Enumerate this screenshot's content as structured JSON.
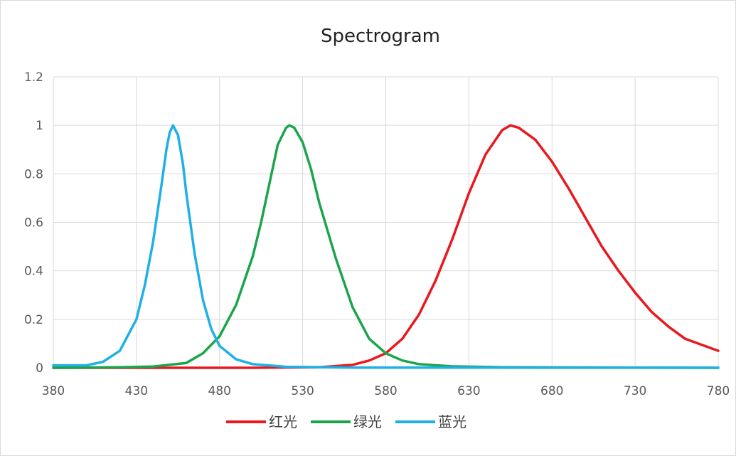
{
  "chart_data": {
    "type": "line",
    "title": "Spectrogram",
    "xlabel": "",
    "ylabel": "",
    "xlim": [
      380,
      780
    ],
    "ylim": [
      0,
      1.2
    ],
    "x_ticks": [
      380,
      430,
      480,
      530,
      580,
      630,
      680,
      730,
      780
    ],
    "y_ticks": [
      "0",
      "0.2",
      "0.4",
      "0.6",
      "0.8",
      "1",
      "1.2"
    ],
    "grid": true,
    "legend": "bottom",
    "series": [
      {
        "name": "红光",
        "color": "#e8191e",
        "x": [
          380,
          500,
          540,
          560,
          570,
          580,
          590,
          600,
          610,
          620,
          630,
          640,
          650,
          655,
          660,
          670,
          680,
          690,
          700,
          710,
          720,
          730,
          740,
          750,
          760,
          770,
          780
        ],
        "y": [
          0,
          0,
          0.002,
          0.012,
          0.03,
          0.06,
          0.12,
          0.22,
          0.36,
          0.53,
          0.72,
          0.88,
          0.98,
          1.0,
          0.99,
          0.94,
          0.85,
          0.74,
          0.62,
          0.5,
          0.4,
          0.31,
          0.23,
          0.17,
          0.12,
          0.095,
          0.07
        ]
      },
      {
        "name": "绿光",
        "color": "#1aa54b",
        "x": [
          380,
          420,
          440,
          460,
          470,
          480,
          490,
          500,
          505,
          510,
          515,
          520,
          522,
          525,
          530,
          535,
          540,
          550,
          560,
          570,
          580,
          590,
          600,
          620,
          650,
          780
        ],
        "y": [
          0,
          0.002,
          0.005,
          0.02,
          0.06,
          0.13,
          0.26,
          0.46,
          0.6,
          0.76,
          0.92,
          0.99,
          1.0,
          0.99,
          0.93,
          0.82,
          0.68,
          0.45,
          0.25,
          0.12,
          0.06,
          0.03,
          0.015,
          0.006,
          0.002,
          0
        ]
      },
      {
        "name": "蓝光",
        "color": "#1eb0e6",
        "x": [
          380,
          400,
          410,
          420,
          430,
          435,
          440,
          445,
          448,
          450,
          452,
          455,
          458,
          460,
          465,
          470,
          475,
          480,
          490,
          500,
          520,
          560,
          780
        ],
        "y": [
          0.01,
          0.01,
          0.025,
          0.07,
          0.2,
          0.34,
          0.52,
          0.75,
          0.9,
          0.97,
          1.0,
          0.96,
          0.84,
          0.72,
          0.47,
          0.28,
          0.16,
          0.09,
          0.035,
          0.015,
          0.004,
          0.001,
          0
        ]
      }
    ]
  }
}
